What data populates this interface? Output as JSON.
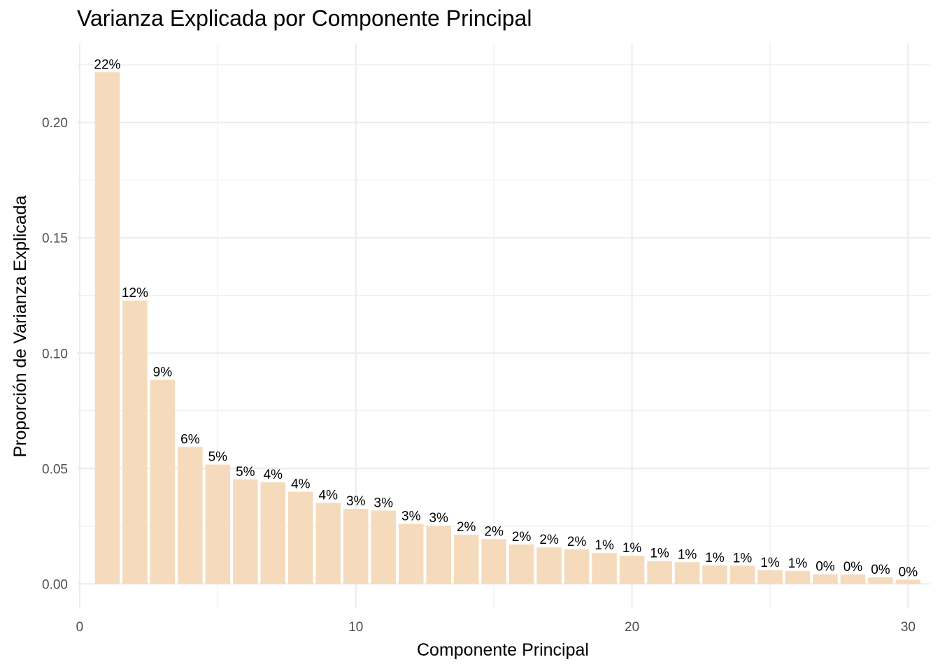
{
  "chart_data": {
    "type": "bar",
    "title": "Varianza Explicada por Componente Principal",
    "xlabel": "Componente Principal",
    "ylabel": "Proporción de Varianza Explicada",
    "xlim": [
      -0.1,
      30.8
    ],
    "ylim": [
      -0.0105,
      0.2343
    ],
    "x_ticks": [
      0,
      10,
      20,
      30
    ],
    "x_tick_labels": [
      "0",
      "10",
      "20",
      "30"
    ],
    "y_ticks": [
      0.0,
      0.05,
      0.1,
      0.15,
      0.2
    ],
    "y_tick_labels": [
      "0.00",
      "0.05",
      "0.10",
      "0.15",
      "0.20"
    ],
    "grid": true,
    "bar_color": "#f5dbbb",
    "grid_color": "#ebebeb",
    "x": [
      1,
      2,
      3,
      4,
      5,
      6,
      7,
      8,
      9,
      10,
      11,
      12,
      13,
      14,
      15,
      16,
      17,
      18,
      19,
      20,
      21,
      22,
      23,
      24,
      25,
      26,
      27,
      28,
      29,
      30
    ],
    "values": [
      0.2218,
      0.1228,
      0.0884,
      0.0594,
      0.0517,
      0.0453,
      0.044,
      0.0399,
      0.0351,
      0.0325,
      0.0318,
      0.026,
      0.0252,
      0.0213,
      0.0194,
      0.0171,
      0.0158,
      0.015,
      0.0134,
      0.0122,
      0.0099,
      0.0094,
      0.008,
      0.0079,
      0.0059,
      0.0056,
      0.0042,
      0.0041,
      0.0028,
      0.0018
    ],
    "labels": [
      "22%",
      "12%",
      "9%",
      "6%",
      "5%",
      "5%",
      "4%",
      "4%",
      "4%",
      "3%",
      "3%",
      "3%",
      "3%",
      "2%",
      "2%",
      "2%",
      "2%",
      "2%",
      "1%",
      "1%",
      "1%",
      "1%",
      "1%",
      "1%",
      "1%",
      "1%",
      "0%",
      "0%",
      "0%",
      "0%"
    ]
  }
}
